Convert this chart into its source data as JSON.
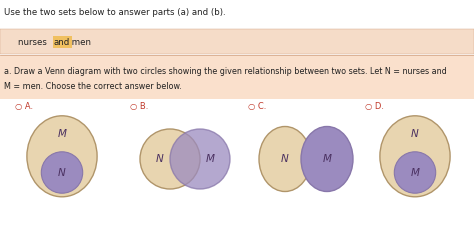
{
  "title_text": "Use the two sets below to answer parts (a) and (b).",
  "nurses_text": "   nurses ",
  "and_text": "and",
  "men_text": " men",
  "question_line1": "a. Draw a Venn diagram with two circles showing the given relationship between two sets. Let N = nurses and",
  "question_line2": "M = men. Choose the correct answer below.",
  "text_color": "#222222",
  "option_color": "#c0392b",
  "header_bg": "#f5dcc8",
  "question_bg": "#fae0cc",
  "white_bg": "#ffffff",
  "and_highlight": "#f0c060",
  "circle_fill": "#e8d5b0",
  "circle_stroke": "#b0956a",
  "inner_fill": "#9b8bbf",
  "inner_stroke": "#8877aa",
  "overlap_fill": "#b09898",
  "label_color": "#4a3060",
  "options": [
    "A.",
    "B.",
    "C.",
    "D."
  ]
}
